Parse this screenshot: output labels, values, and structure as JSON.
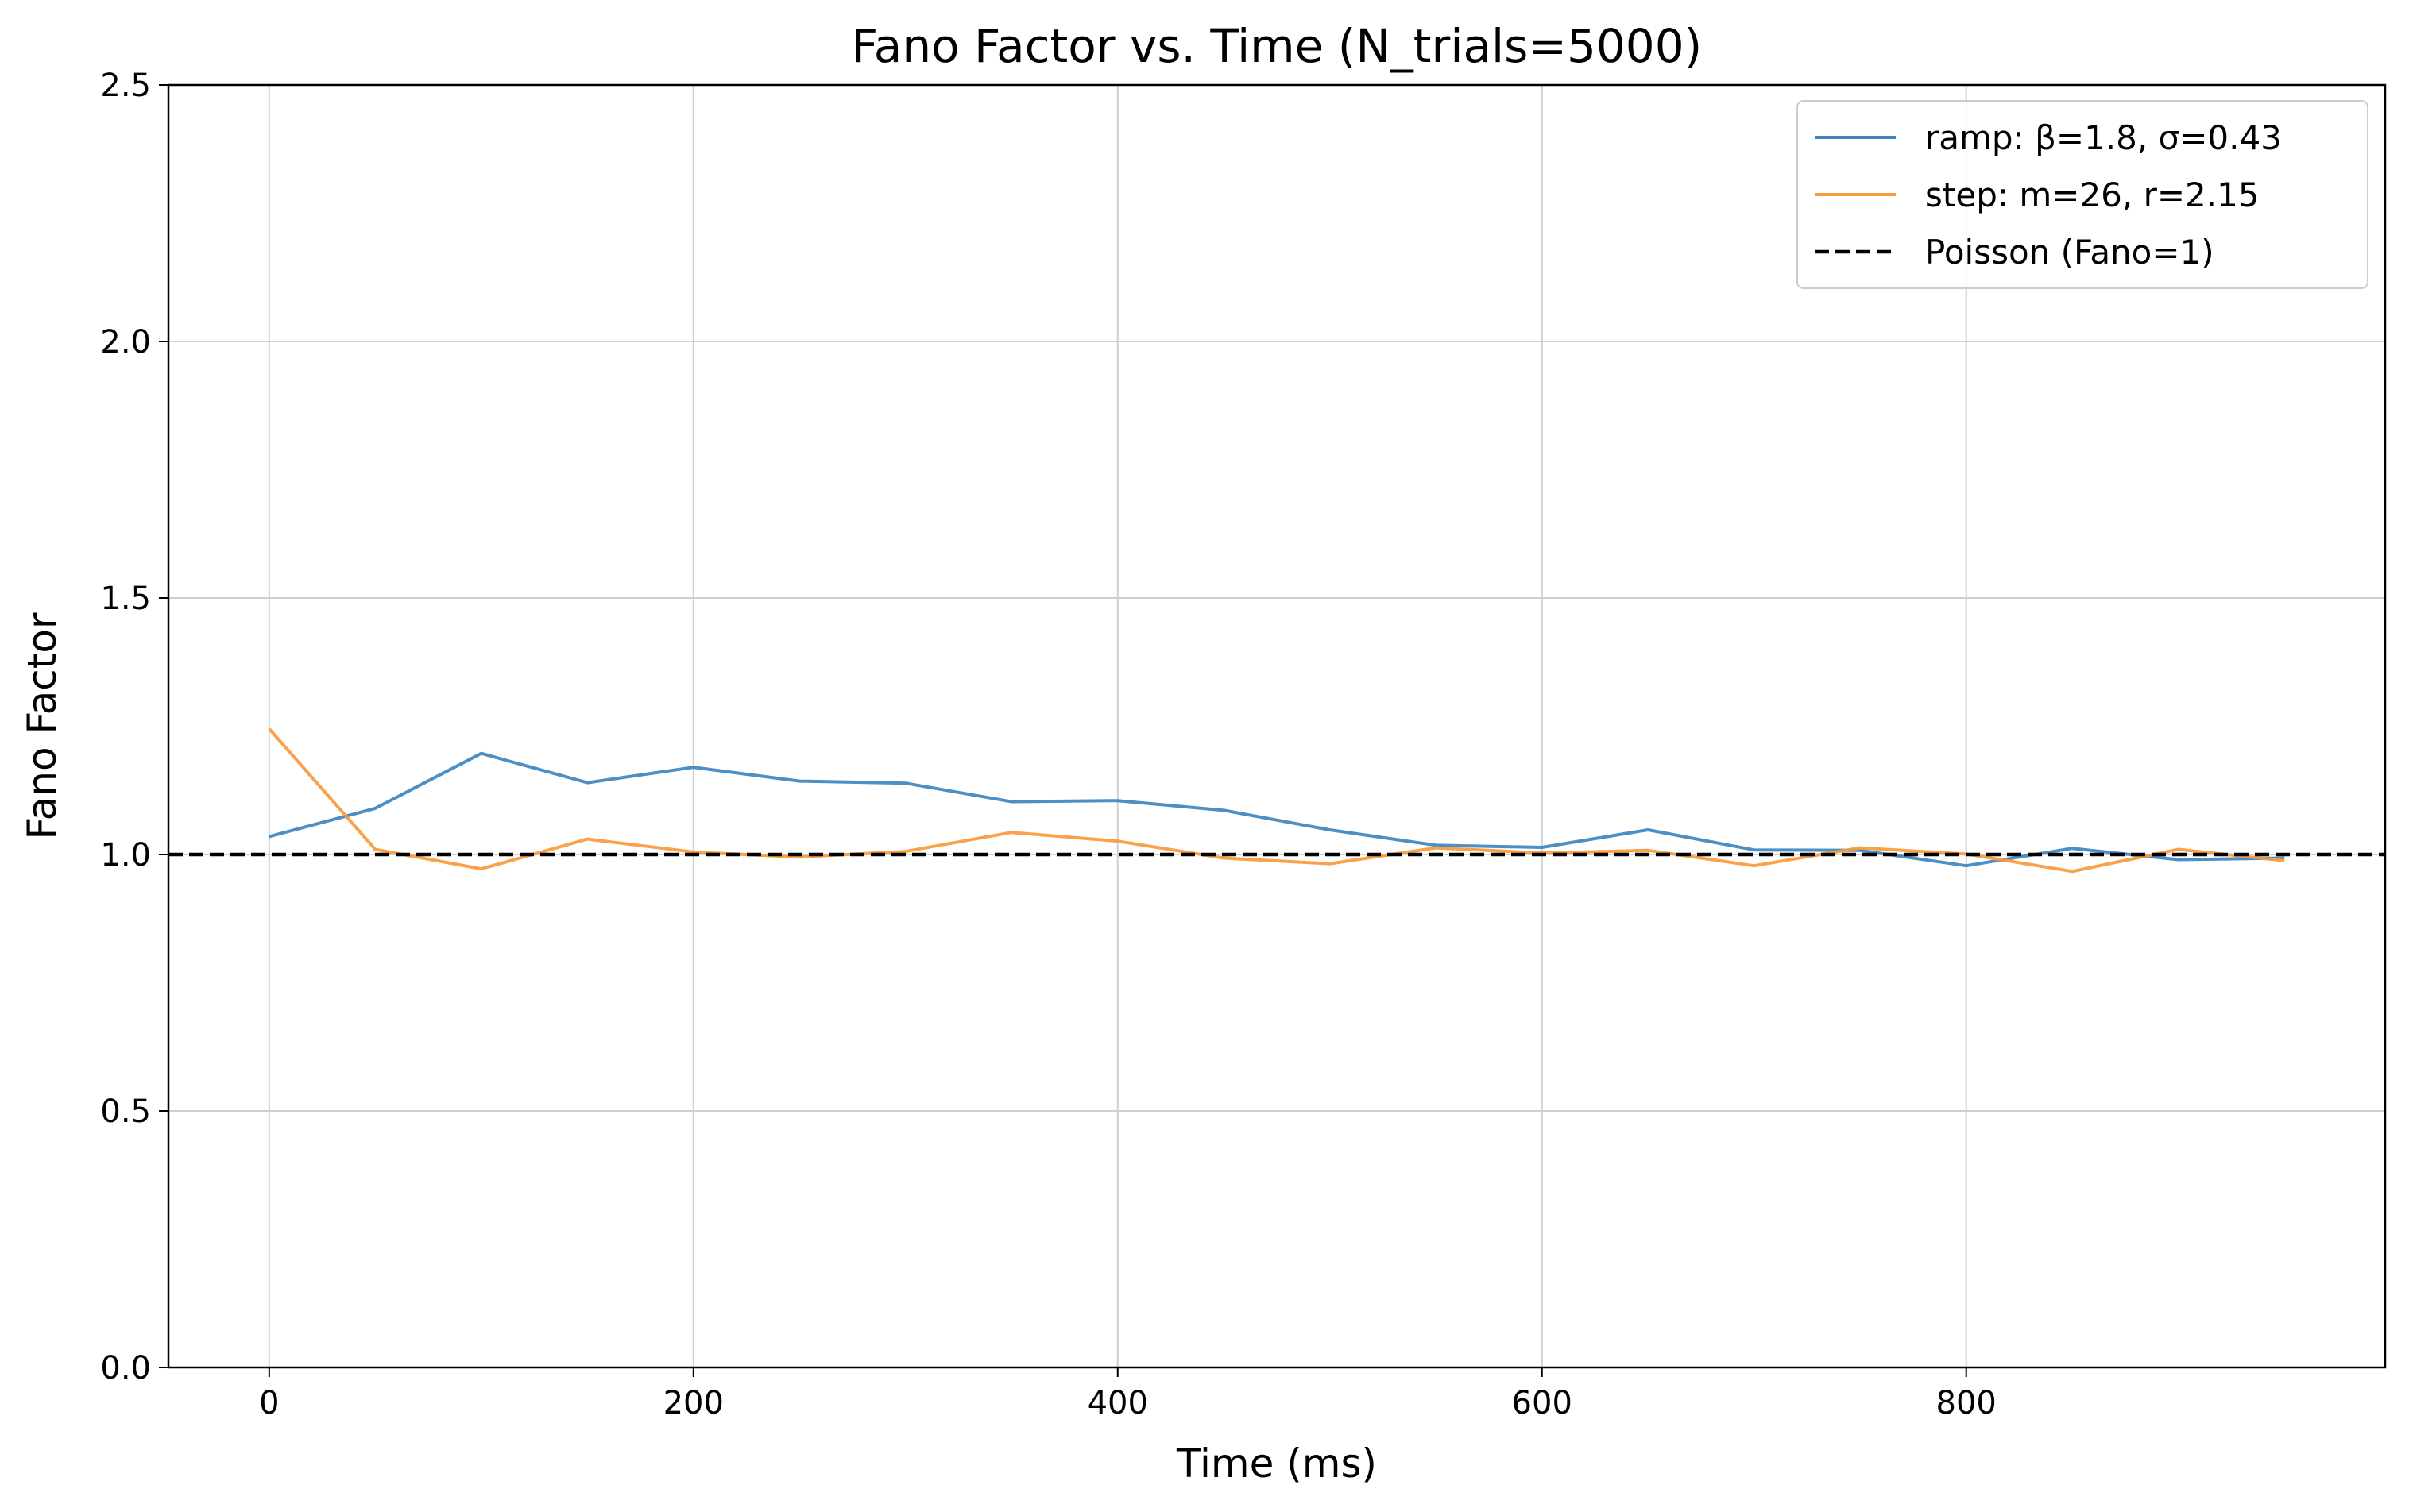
{
  "chart_data": {
    "type": "line",
    "title": "Fano Factor vs. Time  (N_trials=5000)",
    "xlabel": "Time (ms)",
    "ylabel": "Fano Factor",
    "xlim": [
      -47.5,
      997.5
    ],
    "ylim": [
      0.0,
      2.5
    ],
    "xticks": [
      0,
      200,
      400,
      600,
      800
    ],
    "xtick_labels": [
      "0",
      "200",
      "400",
      "600",
      "800"
    ],
    "yticks": [
      0.0,
      0.5,
      1.0,
      1.5,
      2.0,
      2.5
    ],
    "ytick_labels": [
      "0.0",
      "0.5",
      "1.0",
      "1.5",
      "2.0",
      "2.5"
    ],
    "grid": true,
    "legend_position": "top-right",
    "x": [
      0,
      50,
      100,
      150,
      200,
      250,
      300,
      350,
      400,
      450,
      500,
      550,
      600,
      650,
      700,
      750,
      800,
      850,
      900,
      950
    ],
    "series": [
      {
        "name": "ramp: β=1.8, σ=0.43",
        "color": "#3d85c0",
        "style": "solid",
        "values": [
          1.035,
          1.09,
          1.197,
          1.14,
          1.17,
          1.143,
          1.139,
          1.103,
          1.105,
          1.086,
          1.048,
          1.018,
          1.014,
          1.048,
          1.009,
          1.008,
          0.978,
          1.012,
          0.99,
          0.993
        ]
      },
      {
        "name": "step: m=26, r=2.15",
        "color": "#f99a3b",
        "style": "solid",
        "values": [
          1.245,
          1.01,
          0.972,
          1.03,
          1.005,
          0.995,
          1.006,
          1.043,
          1.026,
          0.993,
          0.982,
          1.013,
          1.003,
          1.008,
          0.978,
          1.013,
          1.001,
          0.967,
          1.01,
          0.988
        ]
      },
      {
        "name": "Poisson (Fano=1)",
        "color": "#000000",
        "style": "dashed",
        "constant": 1.0
      }
    ]
  }
}
